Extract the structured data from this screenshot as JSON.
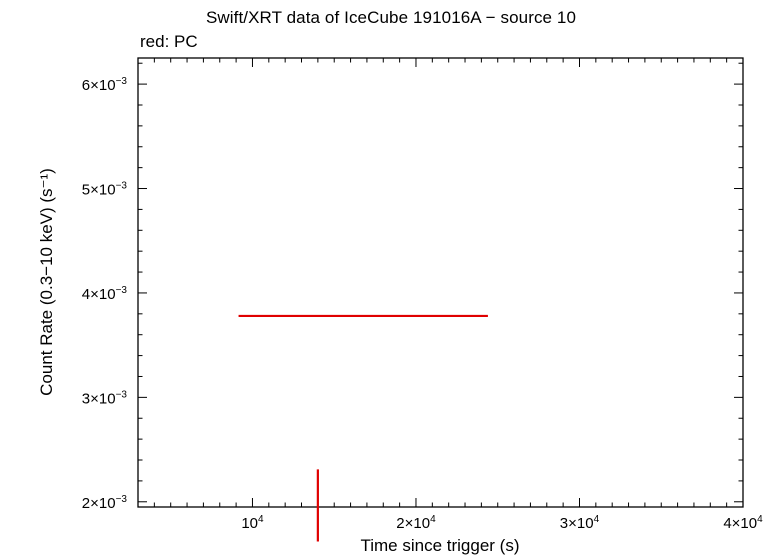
{
  "chart_data": {
    "type": "scatter",
    "title": "Swift/XRT data of IceCube 191016A − source 10",
    "subtitle": "red: PC",
    "xlabel": "Time since trigger (s)",
    "ylabel": "Count Rate (0.3−10 keV) (s⁻¹)",
    "xlim": [
      3000,
      40000
    ],
    "ylim": [
      0.00195,
      0.00625
    ],
    "x_ticks": [
      {
        "value": 10000,
        "mantissa": "",
        "exponent": "4"
      },
      {
        "value": 20000,
        "mantissa": "2",
        "exponent": "4"
      },
      {
        "value": 30000,
        "mantissa": "3",
        "exponent": "4"
      },
      {
        "value": 40000,
        "mantissa": "4",
        "exponent": "4"
      }
    ],
    "y_ticks": [
      {
        "value": 0.002,
        "mantissa": "2",
        "exponent": "−3"
      },
      {
        "value": 0.003,
        "mantissa": "3",
        "exponent": "−3"
      },
      {
        "value": 0.004,
        "mantissa": "4",
        "exponent": "−3"
      },
      {
        "value": 0.005,
        "mantissa": "5",
        "exponent": "−3"
      },
      {
        "value": 0.006,
        "mantissa": "6",
        "exponent": "−3"
      }
    ],
    "series": [
      {
        "color": "#e00000",
        "points": [
          {
            "x": 14000,
            "y": 0.00378,
            "x_err_low": 9150,
            "x_err_high": 24400,
            "y_err_low": 0.00162,
            "y_err_high": 0.00231
          }
        ]
      }
    ]
  }
}
